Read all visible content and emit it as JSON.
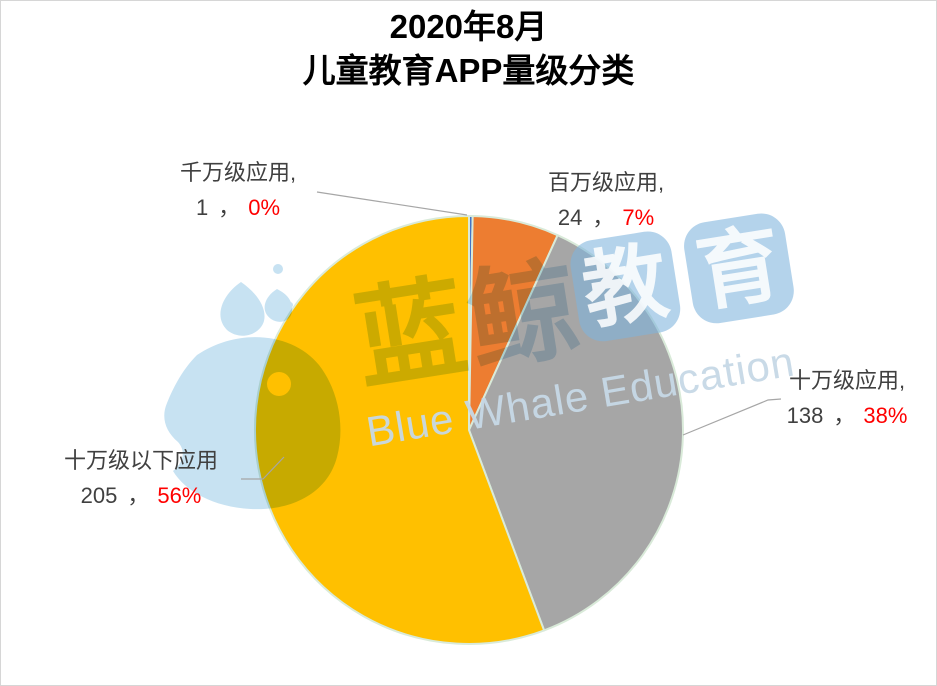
{
  "title": {
    "line1": "2020年8月",
    "line2": "儿童教育APP量级分类"
  },
  "chart_data": {
    "type": "pie",
    "title": "2020年8月 儿童教育APP量级分类",
    "total": 368,
    "start_angle": "12-oclock",
    "direction": "clockwise",
    "legend_position": "none",
    "slices": [
      {
        "category": "千万级应用",
        "value": 1,
        "pct": "0%",
        "color": "#4472C4",
        "callout": {
          "line1": "千万级应用,",
          "value_text": "1",
          "sep": "，",
          "pct_text": "0%"
        }
      },
      {
        "category": "百万级应用",
        "value": 24,
        "pct": "7%",
        "color": "#ED7D31",
        "callout": {
          "line1": "百万级应用,",
          "value_text": "24",
          "sep": "，",
          "pct_text": "7%"
        }
      },
      {
        "category": "十万级应用",
        "value": 138,
        "pct": "38%",
        "color": "#A6A6A6",
        "callout": {
          "line1": "十万级应用,",
          "value_text": "138",
          "sep": "，",
          "pct_text": "38%"
        }
      },
      {
        "category": "十万级以下应用",
        "value": 205,
        "pct": "56%",
        "color": "#FFC000",
        "callout": {
          "line1": "十万级以下应用",
          "value_text": "205",
          "sep": "，",
          "pct_text": "56%"
        }
      }
    ],
    "slice_border_color": "#D9EAD9",
    "leader_line_color": "#A6A6A6",
    "label_text_color": "#404040",
    "pct_text_color": "#FF0000",
    "title_color": "#000000"
  },
  "watermark": {
    "hanzi": "蓝鲸",
    "tile1_char": "教",
    "tile2_char": "育",
    "english": "Blue Whale Education",
    "hanzi_color": "#CCE2F0",
    "tile_bg_color": "rgba(126,180,220,0.58)",
    "tile_char_color": "rgba(255,255,255,0.85)",
    "english_color": "rgba(198,216,230,0.95)",
    "logo_color": "#C7E2F2"
  }
}
